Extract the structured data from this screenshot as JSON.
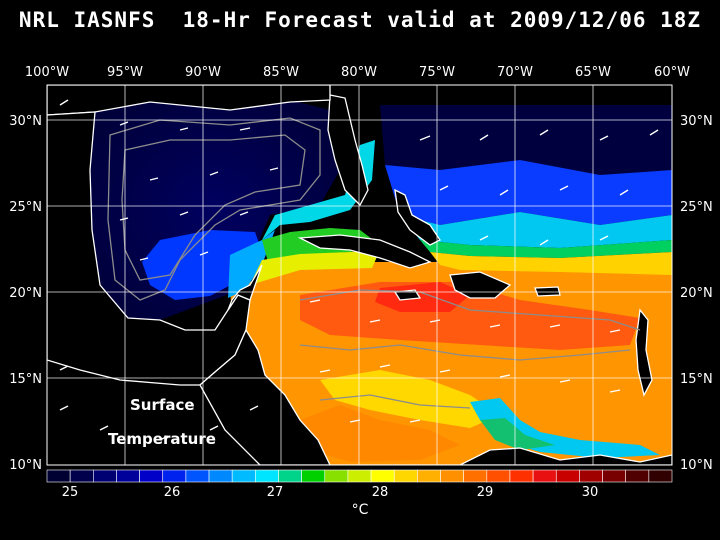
{
  "title": "NRL IASNFS  18-Hr Forecast valid at 2009/12/06 18Z",
  "longitude_labels": [
    "100°W",
    "95°W",
    "90°W",
    "85°W",
    "80°W",
    "75°W",
    "70°W",
    "65°W",
    "60°W"
  ],
  "latitude_labels": [
    "30°N",
    "25°N",
    "20°N",
    "15°N",
    "10°N"
  ],
  "annotation": {
    "line1": "Surface",
    "line2": "Temperature"
  },
  "colorbar": {
    "tick_labels": [
      "25",
      "26",
      "27",
      "28",
      "29",
      "30"
    ],
    "unit": "°C",
    "colors": [
      "#000033",
      "#00004d",
      "#000073",
      "#00009a",
      "#0000c8",
      "#0022ee",
      "#0055ff",
      "#0088ff",
      "#00bbff",
      "#00e5ff",
      "#00d48a",
      "#00d000",
      "#88e000",
      "#ccee00",
      "#ffff00",
      "#ffd700",
      "#ffb000",
      "#ff9000",
      "#ff7000",
      "#ff5000",
      "#ff3000",
      "#e81010",
      "#c80000",
      "#a00000",
      "#780000",
      "#500000",
      "#300000"
    ]
  },
  "colors": {
    "background": "#000000",
    "land": "#000000",
    "coast": "#ffffff",
    "grid": "#ffffff",
    "bathymetry_contour": "#8c8c8c"
  }
}
